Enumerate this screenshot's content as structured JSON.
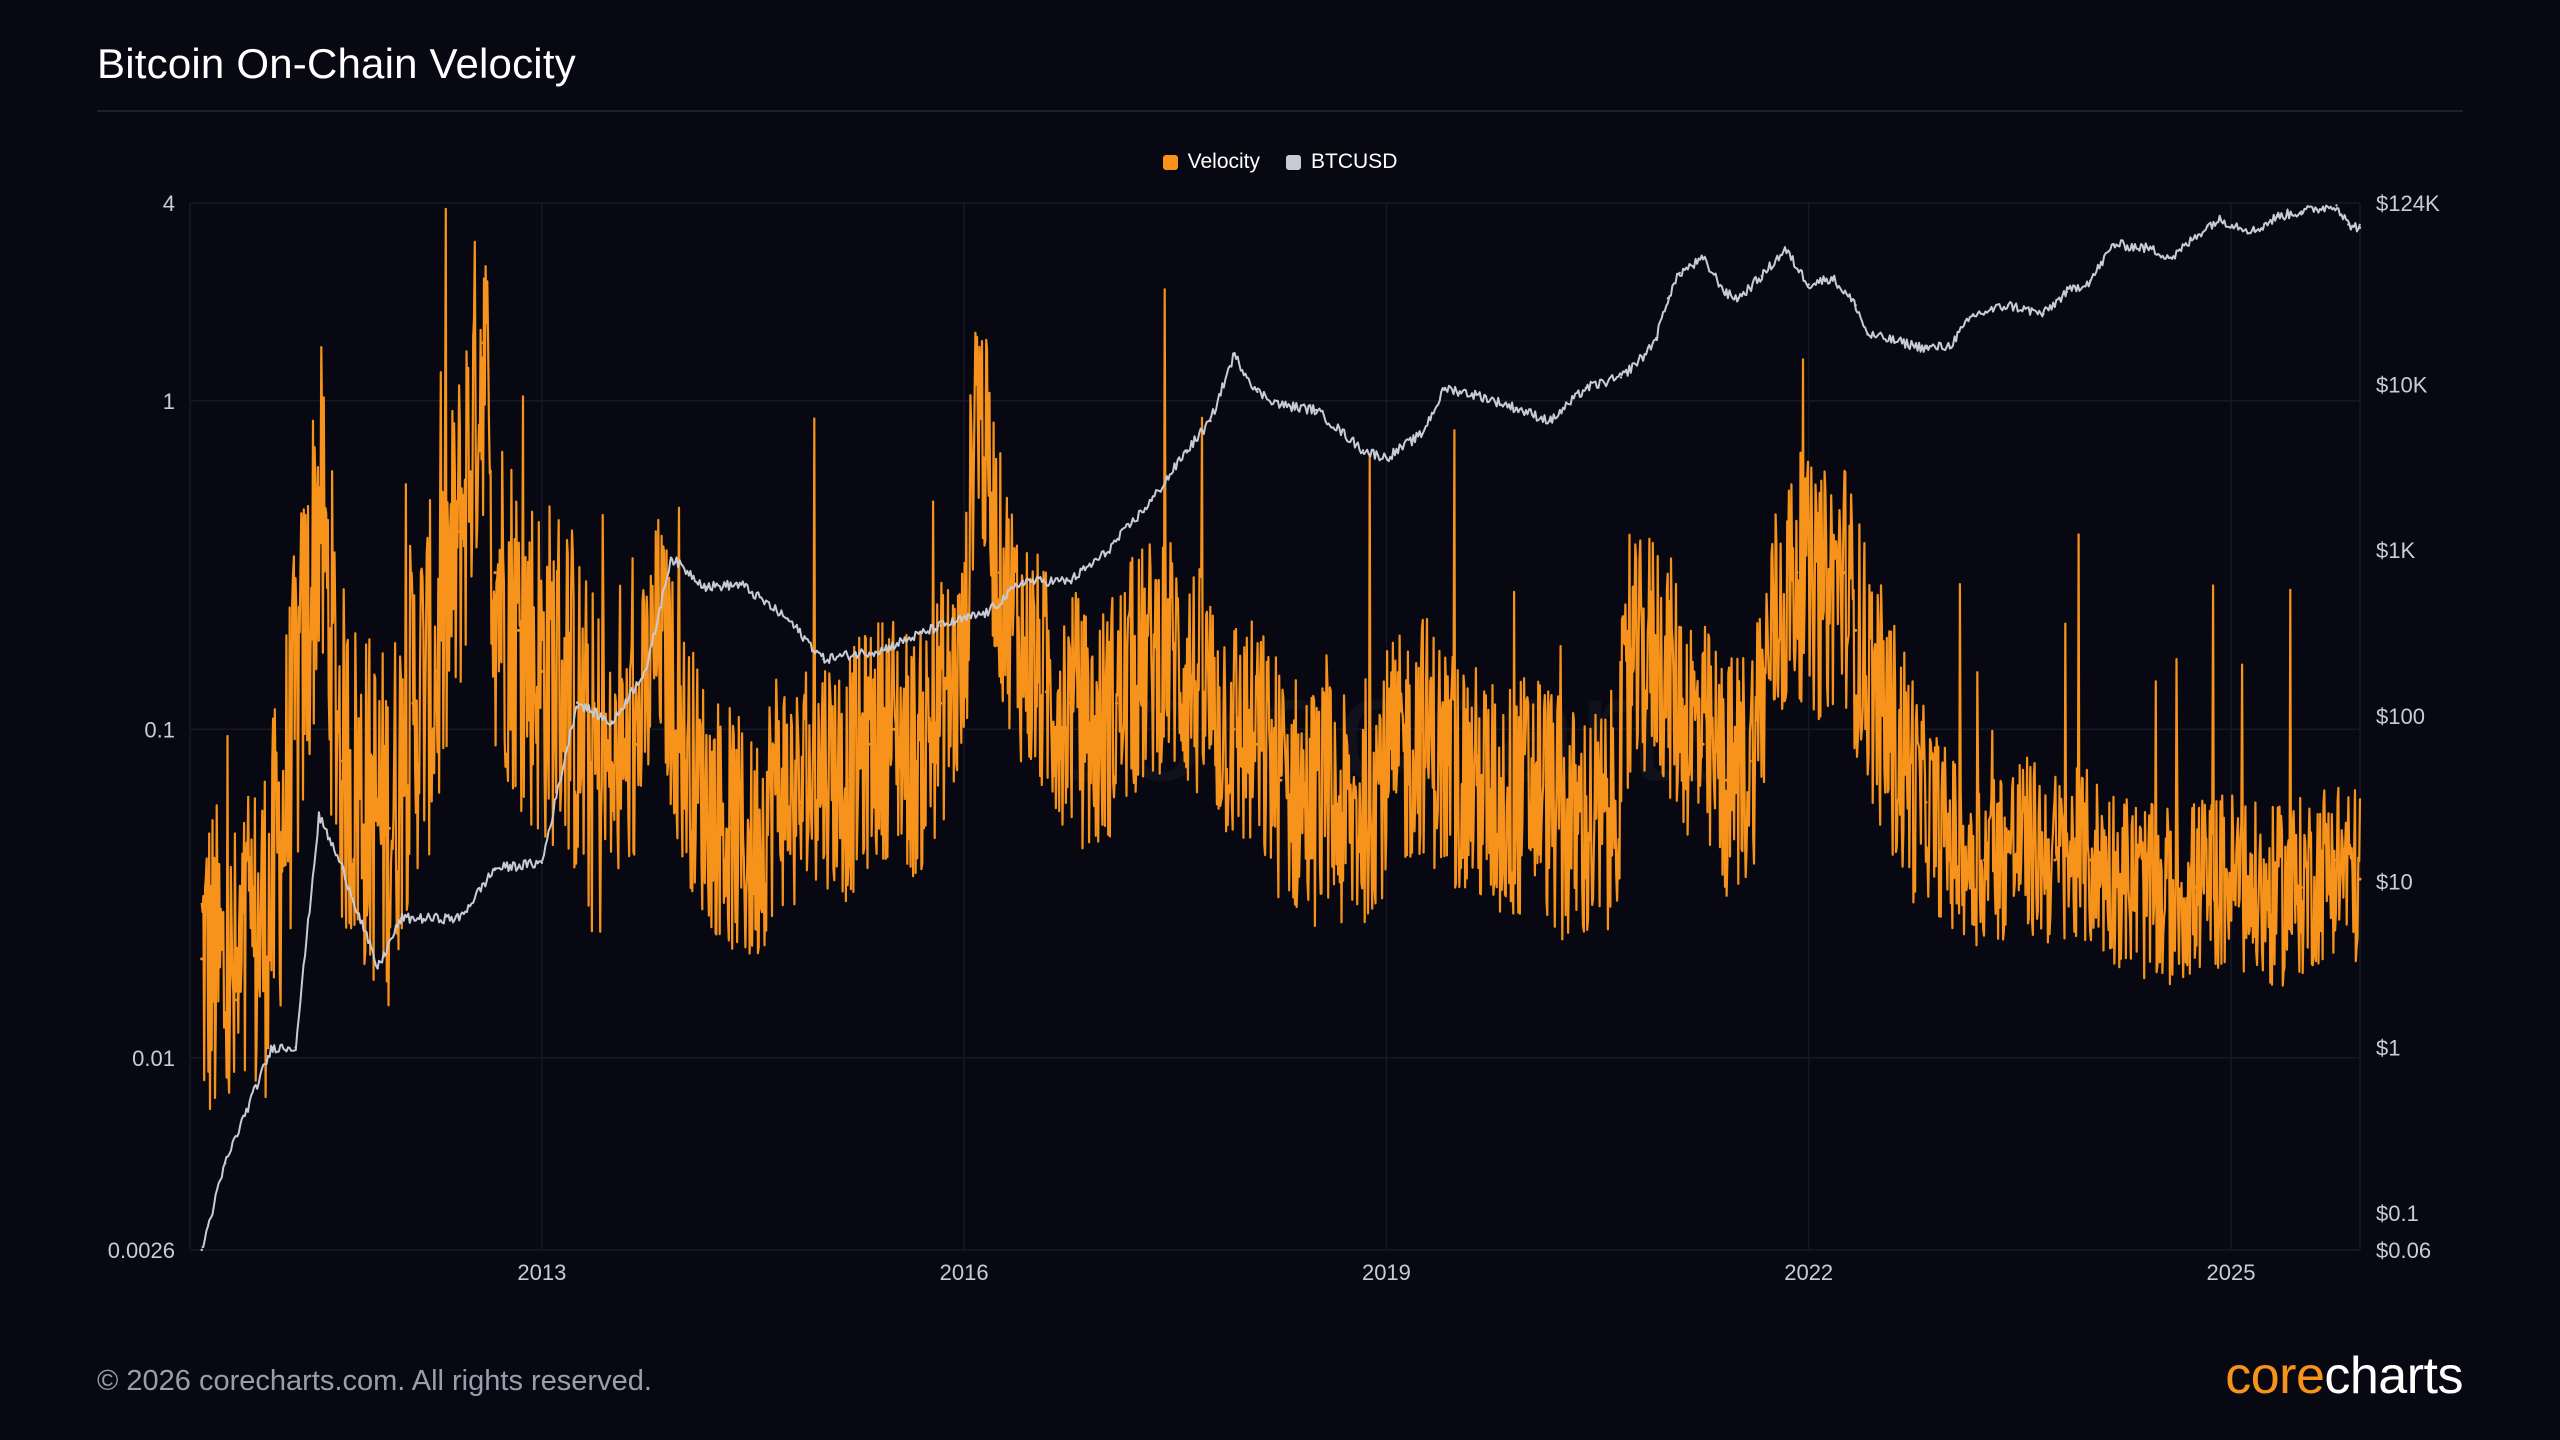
{
  "title": "Bitcoin On-Chain Velocity",
  "footer": "© 2026 corecharts.com. All rights reserved.",
  "brand": {
    "part1": "core",
    "part2": "charts"
  },
  "watermark": "corecharts",
  "colors": {
    "background": "#070812",
    "velocity": "#f7931a",
    "btcusd": "#c8cad4",
    "grid": "#151826"
  },
  "chart_data": {
    "type": "line",
    "title": "Bitcoin On-Chain Velocity",
    "legend": "top-center",
    "grid": true,
    "x_axis": {
      "ticks": [
        "2013",
        "2016",
        "2019",
        "2022",
        "2025"
      ],
      "range": [
        "2010-07",
        "2025-12"
      ]
    },
    "y_axis_left": {
      "scale": "log",
      "ticks": [
        "4",
        "1",
        "0.1",
        "0.01",
        "0.0026"
      ],
      "range": [
        0.0026,
        4
      ]
    },
    "y_axis_right": {
      "scale": "log",
      "ticks": [
        "$124K",
        "$10K",
        "$1K",
        "$100",
        "$10",
        "$1",
        "$0.1",
        "$0.06"
      ],
      "range": [
        0.06,
        124000
      ]
    },
    "series": [
      {
        "name": "Velocity",
        "axis": "left",
        "color": "#f7931a",
        "x": [
          "2010-08",
          "2010-11",
          "2011-02",
          "2011-05",
          "2011-06",
          "2011-08",
          "2011-10",
          "2011-12",
          "2012-02",
          "2012-04",
          "2012-06",
          "2012-08",
          "2012-09",
          "2012-11",
          "2013-01",
          "2013-03",
          "2013-05",
          "2013-07",
          "2013-09",
          "2013-11",
          "2014-01",
          "2014-03",
          "2014-05",
          "2014-07",
          "2014-09",
          "2014-11",
          "2015-01",
          "2015-03",
          "2015-05",
          "2015-07",
          "2015-09",
          "2015-11",
          "2016-01",
          "2016-02",
          "2016-04",
          "2016-06",
          "2016-08",
          "2016-10",
          "2016-12",
          "2017-02",
          "2017-04",
          "2017-06",
          "2017-08",
          "2017-10",
          "2017-12",
          "2018-02",
          "2018-04",
          "2018-06",
          "2018-08",
          "2018-10",
          "2018-12",
          "2019-02",
          "2019-04",
          "2019-06",
          "2019-08",
          "2019-10",
          "2019-12",
          "2020-02",
          "2020-04",
          "2020-06",
          "2020-08",
          "2020-10",
          "2020-12",
          "2021-02",
          "2021-04",
          "2021-06",
          "2021-08",
          "2021-10",
          "2021-12",
          "2022-02",
          "2022-04",
          "2022-05",
          "2022-07",
          "2022-09",
          "2022-11",
          "2023-01",
          "2023-04",
          "2023-07",
          "2023-10",
          "2024-01",
          "2024-04",
          "2024-07",
          "2024-10",
          "2025-01",
          "2025-04",
          "2025-07",
          "2025-10",
          "2025-12"
        ],
        "values": [
          0.02,
          0.015,
          0.03,
          0.2,
          0.5,
          0.08,
          0.06,
          0.05,
          0.12,
          0.15,
          0.4,
          1.5,
          0.3,
          0.2,
          0.15,
          0.15,
          0.08,
          0.07,
          0.09,
          0.2,
          0.09,
          0.06,
          0.05,
          0.04,
          0.07,
          0.06,
          0.08,
          0.07,
          0.09,
          0.1,
          0.08,
          0.12,
          0.15,
          1.2,
          0.3,
          0.18,
          0.13,
          0.12,
          0.09,
          0.12,
          0.15,
          0.18,
          0.15,
          0.12,
          0.1,
          0.09,
          0.07,
          0.06,
          0.06,
          0.05,
          0.07,
          0.08,
          0.1,
          0.08,
          0.07,
          0.06,
          0.06,
          0.07,
          0.05,
          0.05,
          0.05,
          0.15,
          0.18,
          0.12,
          0.09,
          0.07,
          0.08,
          0.2,
          0.3,
          0.25,
          0.3,
          0.2,
          0.12,
          0.08,
          0.06,
          0.045,
          0.04,
          0.045,
          0.04,
          0.04,
          0.035,
          0.03,
          0.033,
          0.035,
          0.03,
          0.033,
          0.04,
          0.035
        ]
      },
      {
        "name": "BTCUSD",
        "axis": "right",
        "color": "#c8cad4",
        "x": [
          "2010-08",
          "2010-10",
          "2011-02",
          "2011-04",
          "2011-06",
          "2011-08",
          "2011-11",
          "2012-01",
          "2012-06",
          "2012-09",
          "2013-01",
          "2013-04",
          "2013-07",
          "2013-10",
          "2013-12",
          "2014-03",
          "2014-06",
          "2014-10",
          "2015-01",
          "2015-06",
          "2015-11",
          "2016-03",
          "2016-06",
          "2016-10",
          "2017-01",
          "2017-05",
          "2017-08",
          "2017-10",
          "2017-12",
          "2018-02",
          "2018-04",
          "2018-07",
          "2018-11",
          "2019-01",
          "2019-04",
          "2019-06",
          "2019-09",
          "2019-12",
          "2020-03",
          "2020-06",
          "2020-09",
          "2020-11",
          "2020-12",
          "2021-01",
          "2021-02",
          "2021-04",
          "2021-06",
          "2021-07",
          "2021-09",
          "2021-11",
          "2022-01",
          "2022-03",
          "2022-05",
          "2022-06",
          "2022-11",
          "2023-01",
          "2023-03",
          "2023-06",
          "2023-09",
          "2023-11",
          "2024-01",
          "2024-03",
          "2024-06",
          "2024-08",
          "2024-11",
          "2024-12",
          "2025-03",
          "2025-05",
          "2025-07",
          "2025-10",
          "2025-11",
          "2025-12"
        ],
        "values": [
          0.06,
          0.2,
          1,
          1,
          25,
          12,
          3,
          6,
          6,
          12,
          13,
          120,
          90,
          200,
          900,
          600,
          620,
          380,
          220,
          250,
          350,
          420,
          650,
          650,
          950,
          2000,
          4000,
          6000,
          15000,
          9000,
          7500,
          7000,
          4000,
          3600,
          5000,
          9500,
          8500,
          7200,
          6000,
          9500,
          11000,
          15000,
          19000,
          33000,
          47000,
          57000,
          35000,
          33000,
          45000,
          65000,
          40000,
          44000,
          30000,
          20000,
          16500,
          17000,
          26000,
          30000,
          26500,
          36000,
          42000,
          70000,
          66000,
          58000,
          90000,
          98000,
          84000,
          103000,
          110000,
          120000,
          92000,
          88000
        ]
      }
    ]
  }
}
